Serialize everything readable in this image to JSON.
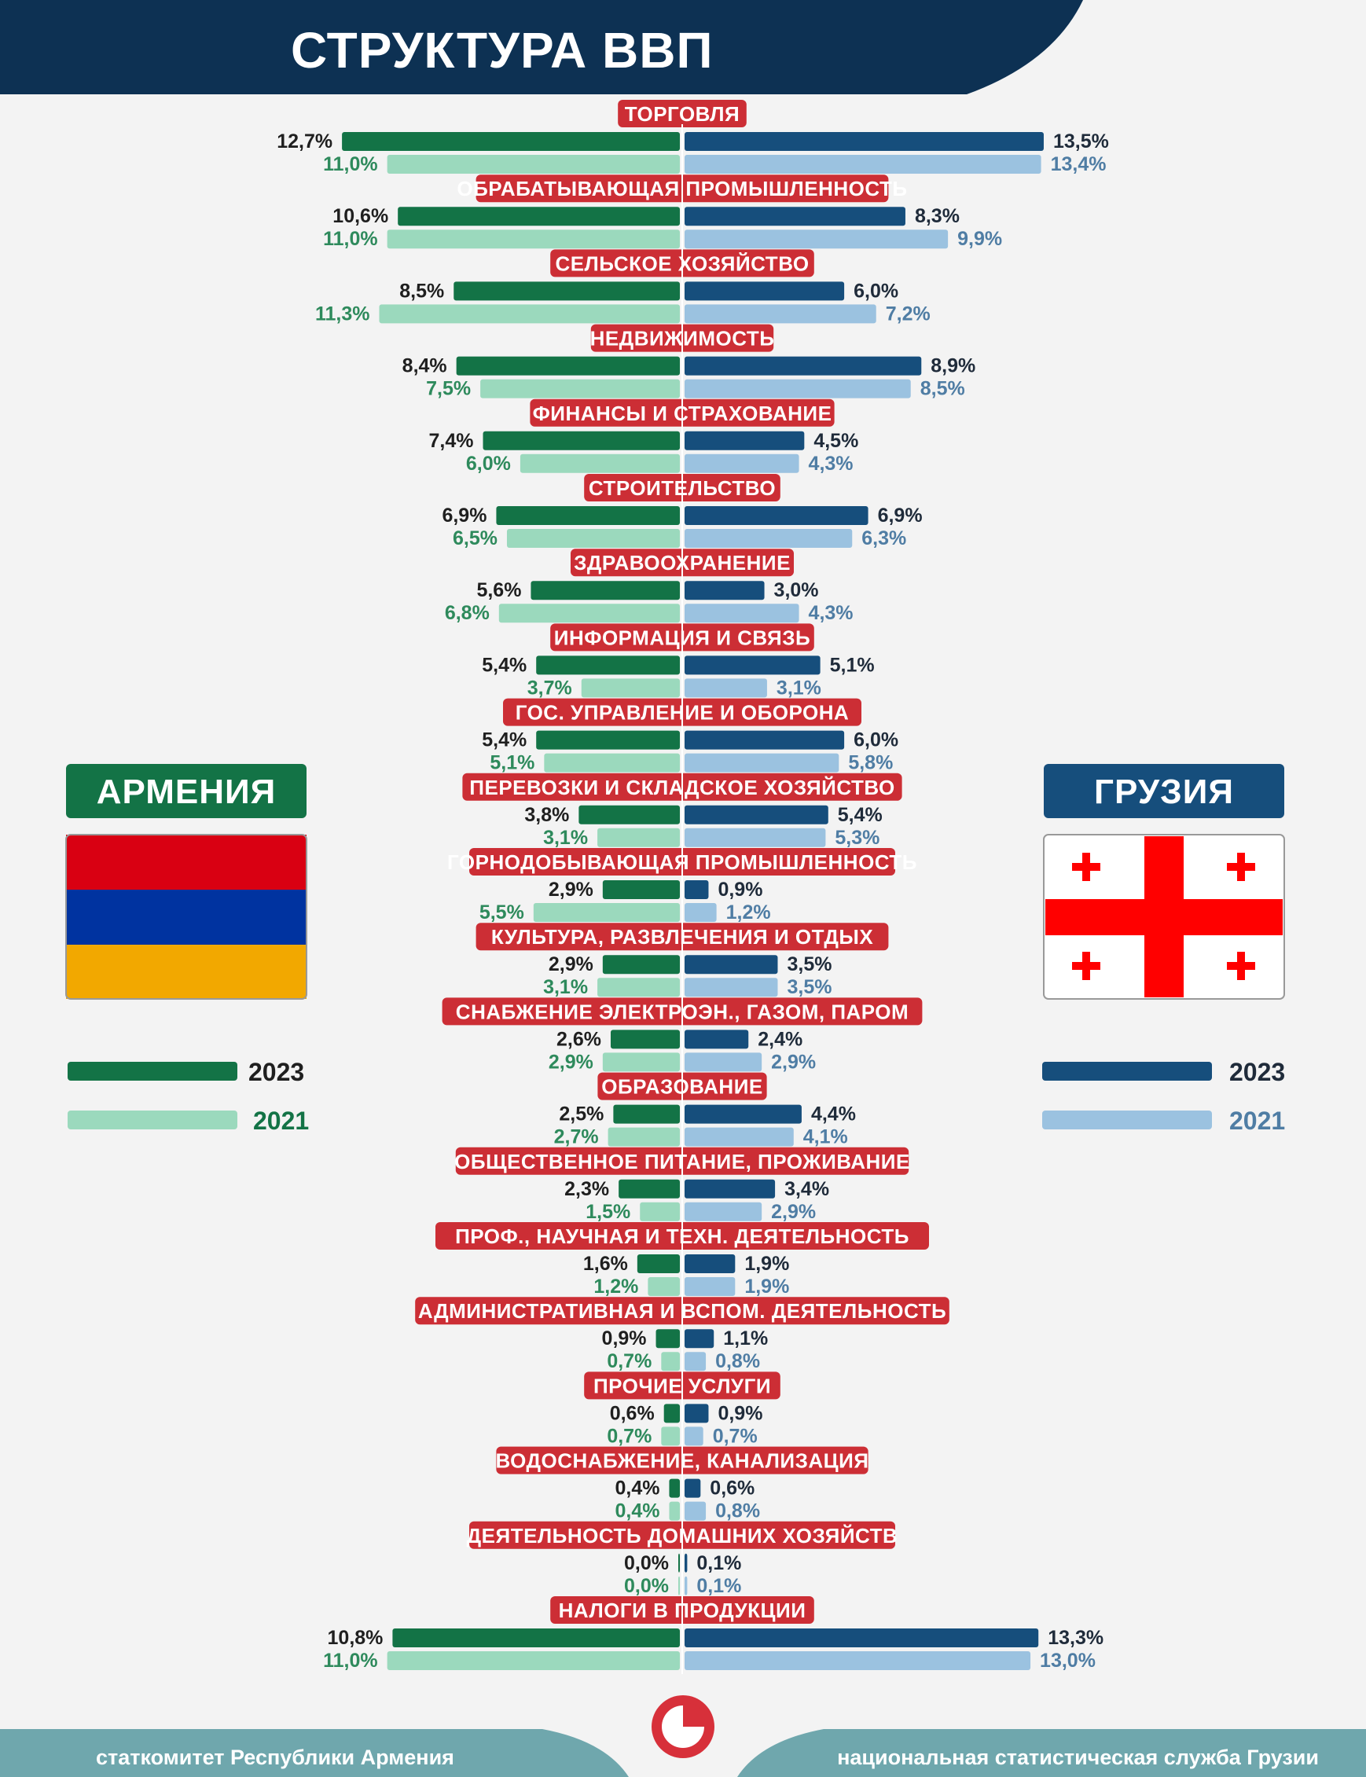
{
  "title": "СТРУКТУРА ВВП",
  "colors": {
    "header_bg": "#0d3153",
    "armenia_2023": "#137346",
    "armenia_2021": "#9bd9bd",
    "georgia_2023": "#164e7c",
    "georgia_2021": "#9bc2e0",
    "category_bg": "#cc2e35",
    "footer_bg": "#6fa7ad",
    "armenia_flag": [
      "#d90012",
      "#0033a0",
      "#f2a800"
    ],
    "georgia_flag": [
      "#ffffff",
      "#ff0000"
    ]
  },
  "countries": {
    "armenia": "АРМЕНИЯ",
    "georgia": "ГРУЗИЯ"
  },
  "legend": {
    "armenia": [
      {
        "label": "2023"
      },
      {
        "label": "2021"
      }
    ],
    "georgia": [
      {
        "label": "2023"
      },
      {
        "label": "2021"
      }
    ]
  },
  "footer": {
    "left": "статкомитет Республики Армения",
    "right": "национальная статистическая служба Грузии",
    "logo_icon": "pie-logo-icon"
  },
  "chart_data": {
    "type": "bar",
    "orientation": "horizontal-butterfly",
    "unit": "% of GDP",
    "title": "СТРУКТУРА ВВП",
    "years": [
      "2023",
      "2021"
    ],
    "categories": [
      "ТОРГОВЛЯ",
      "ОБРАБАТЫВАЮЩАЯ ПРОМЫШЛЕННОСТЬ",
      "СЕЛЬСКОЕ ХОЗЯЙСТВО",
      "НЕДВИЖИМОСТЬ",
      "ФИНАНСЫ И СТРАХОВАНИЕ",
      "СТРОИТЕЛЬСТВО",
      "ЗДРАВООХРАНЕНИЕ",
      "ИНФОРМАЦИЯ И СВЯЗЬ",
      "ГОС. УПРАВЛЕНИЕ И ОБОРОНА",
      "ПЕРЕВОЗКИ И СКЛАДСКОЕ ХОЗЯЙСТВО",
      "ГОРНОДОБЫВАЮЩАЯ ПРОМЫШЛЕННОСТЬ",
      "КУЛЬТУРА, РАЗВЛЕЧЕНИЯ И ОТДЫХ",
      "СНАБЖЕНИЕ ЭЛЕКТРОЭН., ГАЗОМ, ПАРОМ",
      "ОБРАЗОВАНИЕ",
      "ОБЩЕСТВЕННОЕ ПИТАНИЕ, ПРОЖИВАНИЕ",
      "ПРОФ., НАУЧНАЯ И ТЕХН. ДЕЯТЕЛЬНОСТЬ",
      "АДМИНИСТРАТИВНАЯ И ВСПОМ. ДЕЯТЕЛЬНОСТЬ",
      "ПРОЧИЕ УСЛУГИ",
      "ВОДОСНАБЖЕНИЕ, КАНАЛИЗАЦИЯ",
      "ДЕЯТЕЛЬНОСТЬ ДОМАШНИХ ХОЗЯЙСТВ",
      "НАЛОГИ В ПРОДУКЦИИ"
    ],
    "series": [
      {
        "name": "Армения 2023",
        "country": "armenia",
        "year": "2023",
        "values": [
          12.7,
          10.6,
          8.5,
          8.4,
          7.4,
          6.9,
          5.6,
          5.4,
          5.4,
          3.8,
          2.9,
          2.9,
          2.6,
          2.5,
          2.3,
          1.6,
          0.9,
          0.6,
          0.4,
          0.0,
          10.8
        ]
      },
      {
        "name": "Армения 2021",
        "country": "armenia",
        "year": "2021",
        "values": [
          11.0,
          11.0,
          11.3,
          7.5,
          6.0,
          6.5,
          6.8,
          3.7,
          5.1,
          3.1,
          5.5,
          3.1,
          2.9,
          2.7,
          1.5,
          1.2,
          0.7,
          0.7,
          0.4,
          0.0,
          11.0
        ]
      },
      {
        "name": "Грузия 2023",
        "country": "georgia",
        "year": "2023",
        "values": [
          13.5,
          8.3,
          6.0,
          8.9,
          4.5,
          6.9,
          3.0,
          5.1,
          6.0,
          5.4,
          0.9,
          3.5,
          2.4,
          4.4,
          3.4,
          1.9,
          1.1,
          0.9,
          0.6,
          0.1,
          13.3
        ]
      },
      {
        "name": "Грузия 2021",
        "country": "georgia",
        "year": "2021",
        "values": [
          13.4,
          9.9,
          7.2,
          8.5,
          4.3,
          6.3,
          4.3,
          3.1,
          5.8,
          5.3,
          1.2,
          3.5,
          2.9,
          4.1,
          2.9,
          1.9,
          0.8,
          0.7,
          0.8,
          0.1,
          13.0
        ]
      }
    ],
    "value_format": "one decimal, comma separator, percent sign",
    "legend": [
      "2023",
      "2021"
    ]
  }
}
